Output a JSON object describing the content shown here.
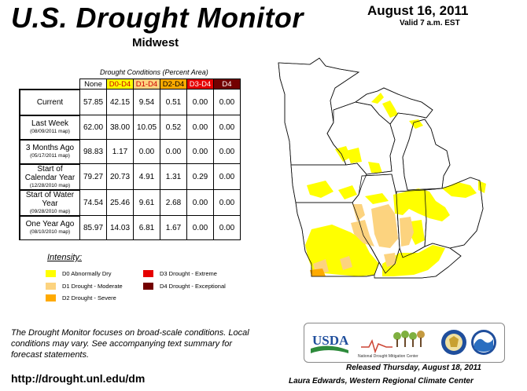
{
  "header": {
    "title": "U.S. Drought Monitor",
    "region": "Midwest",
    "date": "August 16, 2011",
    "valid": "Valid 7 a.m. EST"
  },
  "table": {
    "caption": "Drought Conditions (Percent Area)",
    "columns": [
      "None",
      "D0-D4",
      "D1-D4",
      "D2-D4",
      "D3-D4",
      "D4"
    ],
    "rows": [
      {
        "label": "Current",
        "sub": "",
        "values": [
          "57.85",
          "42.15",
          "9.54",
          "0.51",
          "0.00",
          "0.00"
        ]
      },
      {
        "label": "Last Week",
        "sub": "(08/09/2011 map)",
        "values": [
          "62.00",
          "38.00",
          "10.05",
          "0.52",
          "0.00",
          "0.00"
        ]
      },
      {
        "label": "3 Months Ago",
        "sub": "(05/17/2011 map)",
        "values": [
          "98.83",
          "1.17",
          "0.00",
          "0.00",
          "0.00",
          "0.00"
        ]
      },
      {
        "label": "Start of Calendar Year",
        "sub": "(12/28/2010 map)",
        "values": [
          "79.27",
          "20.73",
          "4.91",
          "1.31",
          "0.29",
          "0.00"
        ]
      },
      {
        "label": "Start of Water Year",
        "sub": "(09/28/2010 map)",
        "values": [
          "74.54",
          "25.46",
          "9.61",
          "2.68",
          "0.00",
          "0.00"
        ]
      },
      {
        "label": "One Year Ago",
        "sub": "(08/10/2010 map)",
        "values": [
          "85.97",
          "14.03",
          "6.81",
          "1.67",
          "0.00",
          "0.00"
        ]
      }
    ]
  },
  "legend": {
    "title": "Intensity:",
    "items": [
      {
        "label": "D0 Abnormally Dry",
        "color": "#ffff00"
      },
      {
        "label": "D1 Drought - Moderate",
        "color": "#fcd37f"
      },
      {
        "label": "D2 Drought - Severe",
        "color": "#ffaa00"
      },
      {
        "label": "D3 Drought - Extreme",
        "color": "#e60000"
      },
      {
        "label": "D4 Drought - Exceptional",
        "color": "#730000"
      }
    ]
  },
  "footer": {
    "note": "The Drought Monitor focuses on broad-scale conditions. Local conditions may vary. See accompanying text summary for forecast statements.",
    "url": "http://drought.unl.edu/dm",
    "released": "Released Thursday, August 18, 2011",
    "author": "Laura Edwards, Western Regional Climate Center"
  },
  "logos": {
    "usda": "USDA",
    "ndmc": "National Drought Mitigation Center"
  },
  "colors": {
    "d0": "#ffff00",
    "d1": "#fcd37f",
    "d2": "#ffaa00",
    "d3": "#e60000",
    "d4": "#730000",
    "usda_blue": "#1f4e9c",
    "usda_green": "#2e8b3c"
  }
}
